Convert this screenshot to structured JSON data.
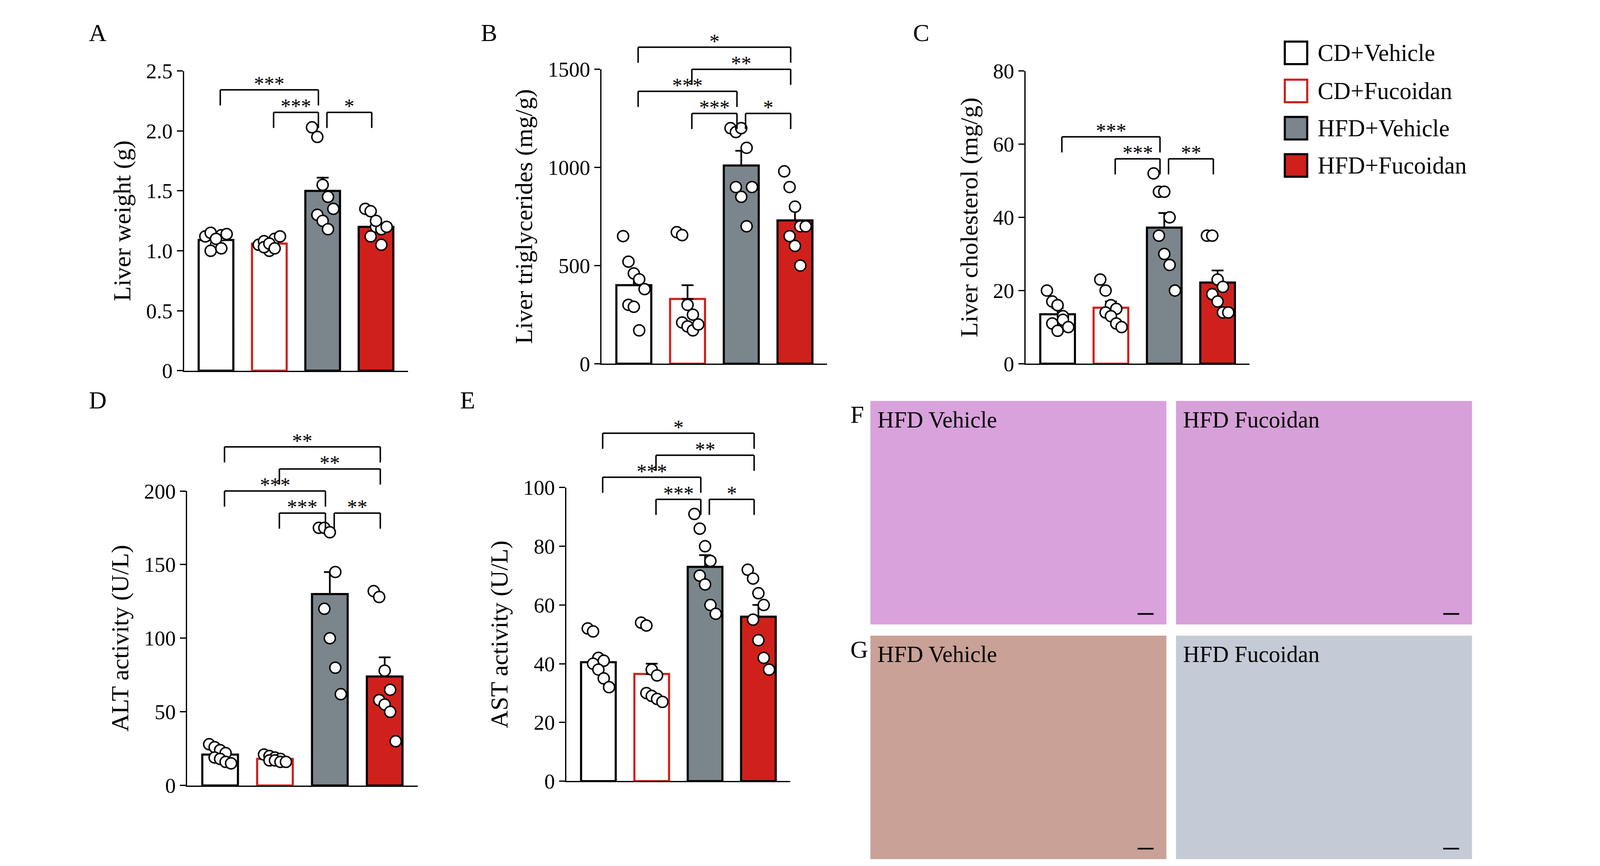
{
  "chart_data": [
    {
      "type": "bar",
      "title": "A",
      "y_label": "Liver weight (g)",
      "categories": [
        "CD+Vehicle",
        "CD+Fucoidan",
        "HFD+Vehicle",
        "HFD+Fucoidan"
      ],
      "colors": [
        "#ffffff",
        "#ffffff",
        "#7b858c",
        "#d0201b"
      ],
      "values": [
        1.09,
        1.06,
        1.5,
        1.2
      ],
      "errors": [
        0.03,
        0.02,
        0.11,
        0.05
      ],
      "points": [
        [
          1.12,
          1.15,
          1.05,
          1.13,
          1.0,
          1.1,
          1.02,
          1.14
        ],
        [
          1.05,
          1.08,
          1.0,
          1.1,
          1.03,
          1.06,
          1.02,
          1.12
        ],
        [
          2.03,
          1.95,
          1.55,
          1.45,
          1.3,
          1.25,
          1.18,
          1.35
        ],
        [
          1.35,
          1.33,
          1.2,
          1.18,
          1.12,
          1.25,
          1.05,
          1.2
        ]
      ],
      "ylim": [
        0,
        2.5
      ],
      "yticks": [
        0,
        0.5,
        {
          "value": 1,
          "label": "1.0"
        },
        1.5,
        {
          "value": 2,
          "label": "2.0"
        },
        2.5
      ],
      "tick_labels": "y",
      "significance": [
        {
          "pair": [
            "CD+Fucoidan",
            "HFD+Vehicle"
          ],
          "label": "***"
        },
        {
          "pair": [
            "HFD+Vehicle",
            "HFD+Fucoidan"
          ],
          "label": "*"
        },
        {
          "pair": [
            "CD+Vehicle",
            "HFD+Vehicle"
          ],
          "label": "***"
        }
      ]
    },
    {
      "type": "bar",
      "title": "B",
      "y_label": "Liver triglycerides (mg/g)",
      "categories": [
        "CD+Vehicle",
        "CD+Fucoidan",
        "HFD+Vehicle",
        "HFD+Fucoidan"
      ],
      "colors": [
        "#ffffff",
        "#ffffff",
        "#7b858c",
        "#d0201b"
      ],
      "values": [
        400,
        330,
        1010,
        730
      ],
      "errors": [
        60,
        70,
        75,
        60
      ],
      "points": [
        [
          650,
          520,
          460,
          430,
          300,
          290,
          170,
          380
        ],
        [
          670,
          655,
          300,
          250,
          210,
          190,
          170,
          200
        ],
        [
          1200,
          1180,
          1200,
          1100,
          900,
          850,
          700,
          900
        ],
        [
          980,
          900,
          800,
          700,
          650,
          600,
          500,
          700
        ]
      ],
      "ylim": [
        0,
        1500
      ],
      "yticks": [
        0,
        500,
        1000,
        1500
      ],
      "tick_labels": "y",
      "significance": [
        {
          "pair": [
            "CD+Fucoidan",
            "HFD+Vehicle"
          ],
          "label": "***"
        },
        {
          "pair": [
            "CD+Vehicle",
            "HFD+Vehicle"
          ],
          "label": "***"
        },
        {
          "pair": [
            "HFD+Vehicle",
            "HFD+Fucoidan"
          ],
          "label": "*"
        },
        {
          "pair": [
            "CD+Fucoidan",
            "HFD+Fucoidan"
          ],
          "label": "**"
        },
        {
          "pair": [
            "CD+Vehicle",
            "HFD+Fucoidan"
          ],
          "label": "*"
        }
      ]
    },
    {
      "type": "bar",
      "title": "C",
      "y_label": "Liver cholesterol (mg/g)",
      "categories": [
        "CD+Vehicle",
        "CD+Fucoidan",
        "HFD+Vehicle",
        "HFD+Fucoidan"
      ],
      "colors": [
        "#ffffff",
        "#ffffff",
        "#7b858c",
        "#d0201b"
      ],
      "values": [
        13.5,
        15.3,
        37.2,
        22.2
      ],
      "errors": [
        1.7,
        1.7,
        4,
        3.3
      ],
      "points": [
        [
          20,
          17,
          16,
          13,
          11,
          9,
          12,
          10
        ],
        [
          23,
          20,
          16,
          15,
          14,
          13,
          11,
          10
        ],
        [
          52,
          47,
          47,
          40,
          35,
          30,
          27,
          20
        ],
        [
          35,
          35,
          23,
          21,
          19,
          17,
          14,
          14
        ]
      ],
      "ylim": [
        0,
        80
      ],
      "yticks": [
        0,
        20,
        40,
        60,
        80
      ],
      "tick_labels": "y",
      "legend": "right",
      "significance": [
        {
          "pair": [
            "CD+Fucoidan",
            "HFD+Vehicle"
          ],
          "label": "***"
        },
        {
          "pair": [
            "HFD+Vehicle",
            "HFD+Fucoidan"
          ],
          "label": "**"
        },
        {
          "pair": [
            "CD+Vehicle",
            "HFD+Vehicle"
          ],
          "label": "***"
        }
      ]
    },
    {
      "type": "bar",
      "title": "D",
      "y_label": "ALT activity (U/L)",
      "categories": [
        "CD+Vehicle",
        "CD+Fucoidan",
        "HFD+Vehicle",
        "HFD+Fucoidan"
      ],
      "colors": [
        "#ffffff",
        "#ffffff",
        "#7b858c",
        "#d0201b"
      ],
      "values": [
        21,
        18,
        130,
        74
      ],
      "errors": [
        2,
        1,
        15,
        13
      ],
      "points": [
        [
          28,
          26,
          24,
          22,
          19,
          18,
          16,
          15
        ],
        [
          21,
          20,
          19,
          18,
          17,
          17,
          16,
          16
        ],
        [
          175,
          175,
          172,
          145,
          120,
          100,
          80,
          62
        ],
        [
          132,
          128,
          78,
          65,
          58,
          55,
          50,
          30
        ]
      ],
      "ylim": [
        0,
        200
      ],
      "yticks": [
        0,
        50,
        100,
        150,
        200
      ],
      "tick_labels": "y",
      "significance": [
        {
          "pair": [
            "CD+Fucoidan",
            "HFD+Vehicle"
          ],
          "label": "***"
        },
        {
          "pair": [
            "CD+Vehicle",
            "HFD+Vehicle"
          ],
          "label": "***"
        },
        {
          "pair": [
            "HFD+Vehicle",
            "HFD+Fucoidan"
          ],
          "label": "**"
        },
        {
          "pair": [
            "CD+Fucoidan",
            "HFD+Fucoidan"
          ],
          "label": "**"
        },
        {
          "pair": [
            "CD+Vehicle",
            "HFD+Fucoidan"
          ],
          "label": "**"
        }
      ]
    },
    {
      "type": "bar",
      "title": "E",
      "y_label": "AST activity (U/L)",
      "categories": [
        "CD+Vehicle",
        "CD+Fucoidan",
        "HFD+Vehicle",
        "HFD+Fucoidan"
      ],
      "colors": [
        "#ffffff",
        "#ffffff",
        "#7b858c",
        "#d0201b"
      ],
      "values": [
        40.5,
        36.5,
        73,
        56
      ],
      "errors": [
        2,
        3.5,
        4,
        4
      ],
      "points": [
        [
          52,
          51,
          42,
          41,
          40,
          38,
          35,
          32
        ],
        [
          54,
          53,
          38,
          36,
          30,
          29,
          28,
          27
        ],
        [
          91,
          86,
          80,
          75,
          70,
          67,
          60,
          57
        ],
        [
          72,
          69,
          64,
          60,
          55,
          48,
          42,
          38
        ]
      ],
      "ylim": [
        0,
        100
      ],
      "yticks": [
        0,
        20,
        40,
        60,
        80,
        100
      ],
      "tick_labels": "y",
      "significance": [
        {
          "pair": [
            "CD+Fucoidan",
            "HFD+Vehicle"
          ],
          "label": "***"
        },
        {
          "pair": [
            "CD+Vehicle",
            "HFD+Vehicle"
          ],
          "label": "***"
        },
        {
          "pair": [
            "HFD+Vehicle",
            "HFD+Fucoidan"
          ],
          "label": "*"
        },
        {
          "pair": [
            "CD+Fucoidan",
            "HFD+Fucoidan"
          ],
          "label": "**"
        },
        {
          "pair": [
            "CD+Vehicle",
            "HFD+Fucoidan"
          ],
          "label": "*"
        }
      ]
    }
  ],
  "image_panels": [
    {
      "panel": "F",
      "labels": [
        "HFD Vehicle",
        "HFD Fucoidan"
      ]
    },
    {
      "panel": "G",
      "labels": [
        "HFD Vehicle",
        "HFD Fucoidan"
      ]
    }
  ]
}
